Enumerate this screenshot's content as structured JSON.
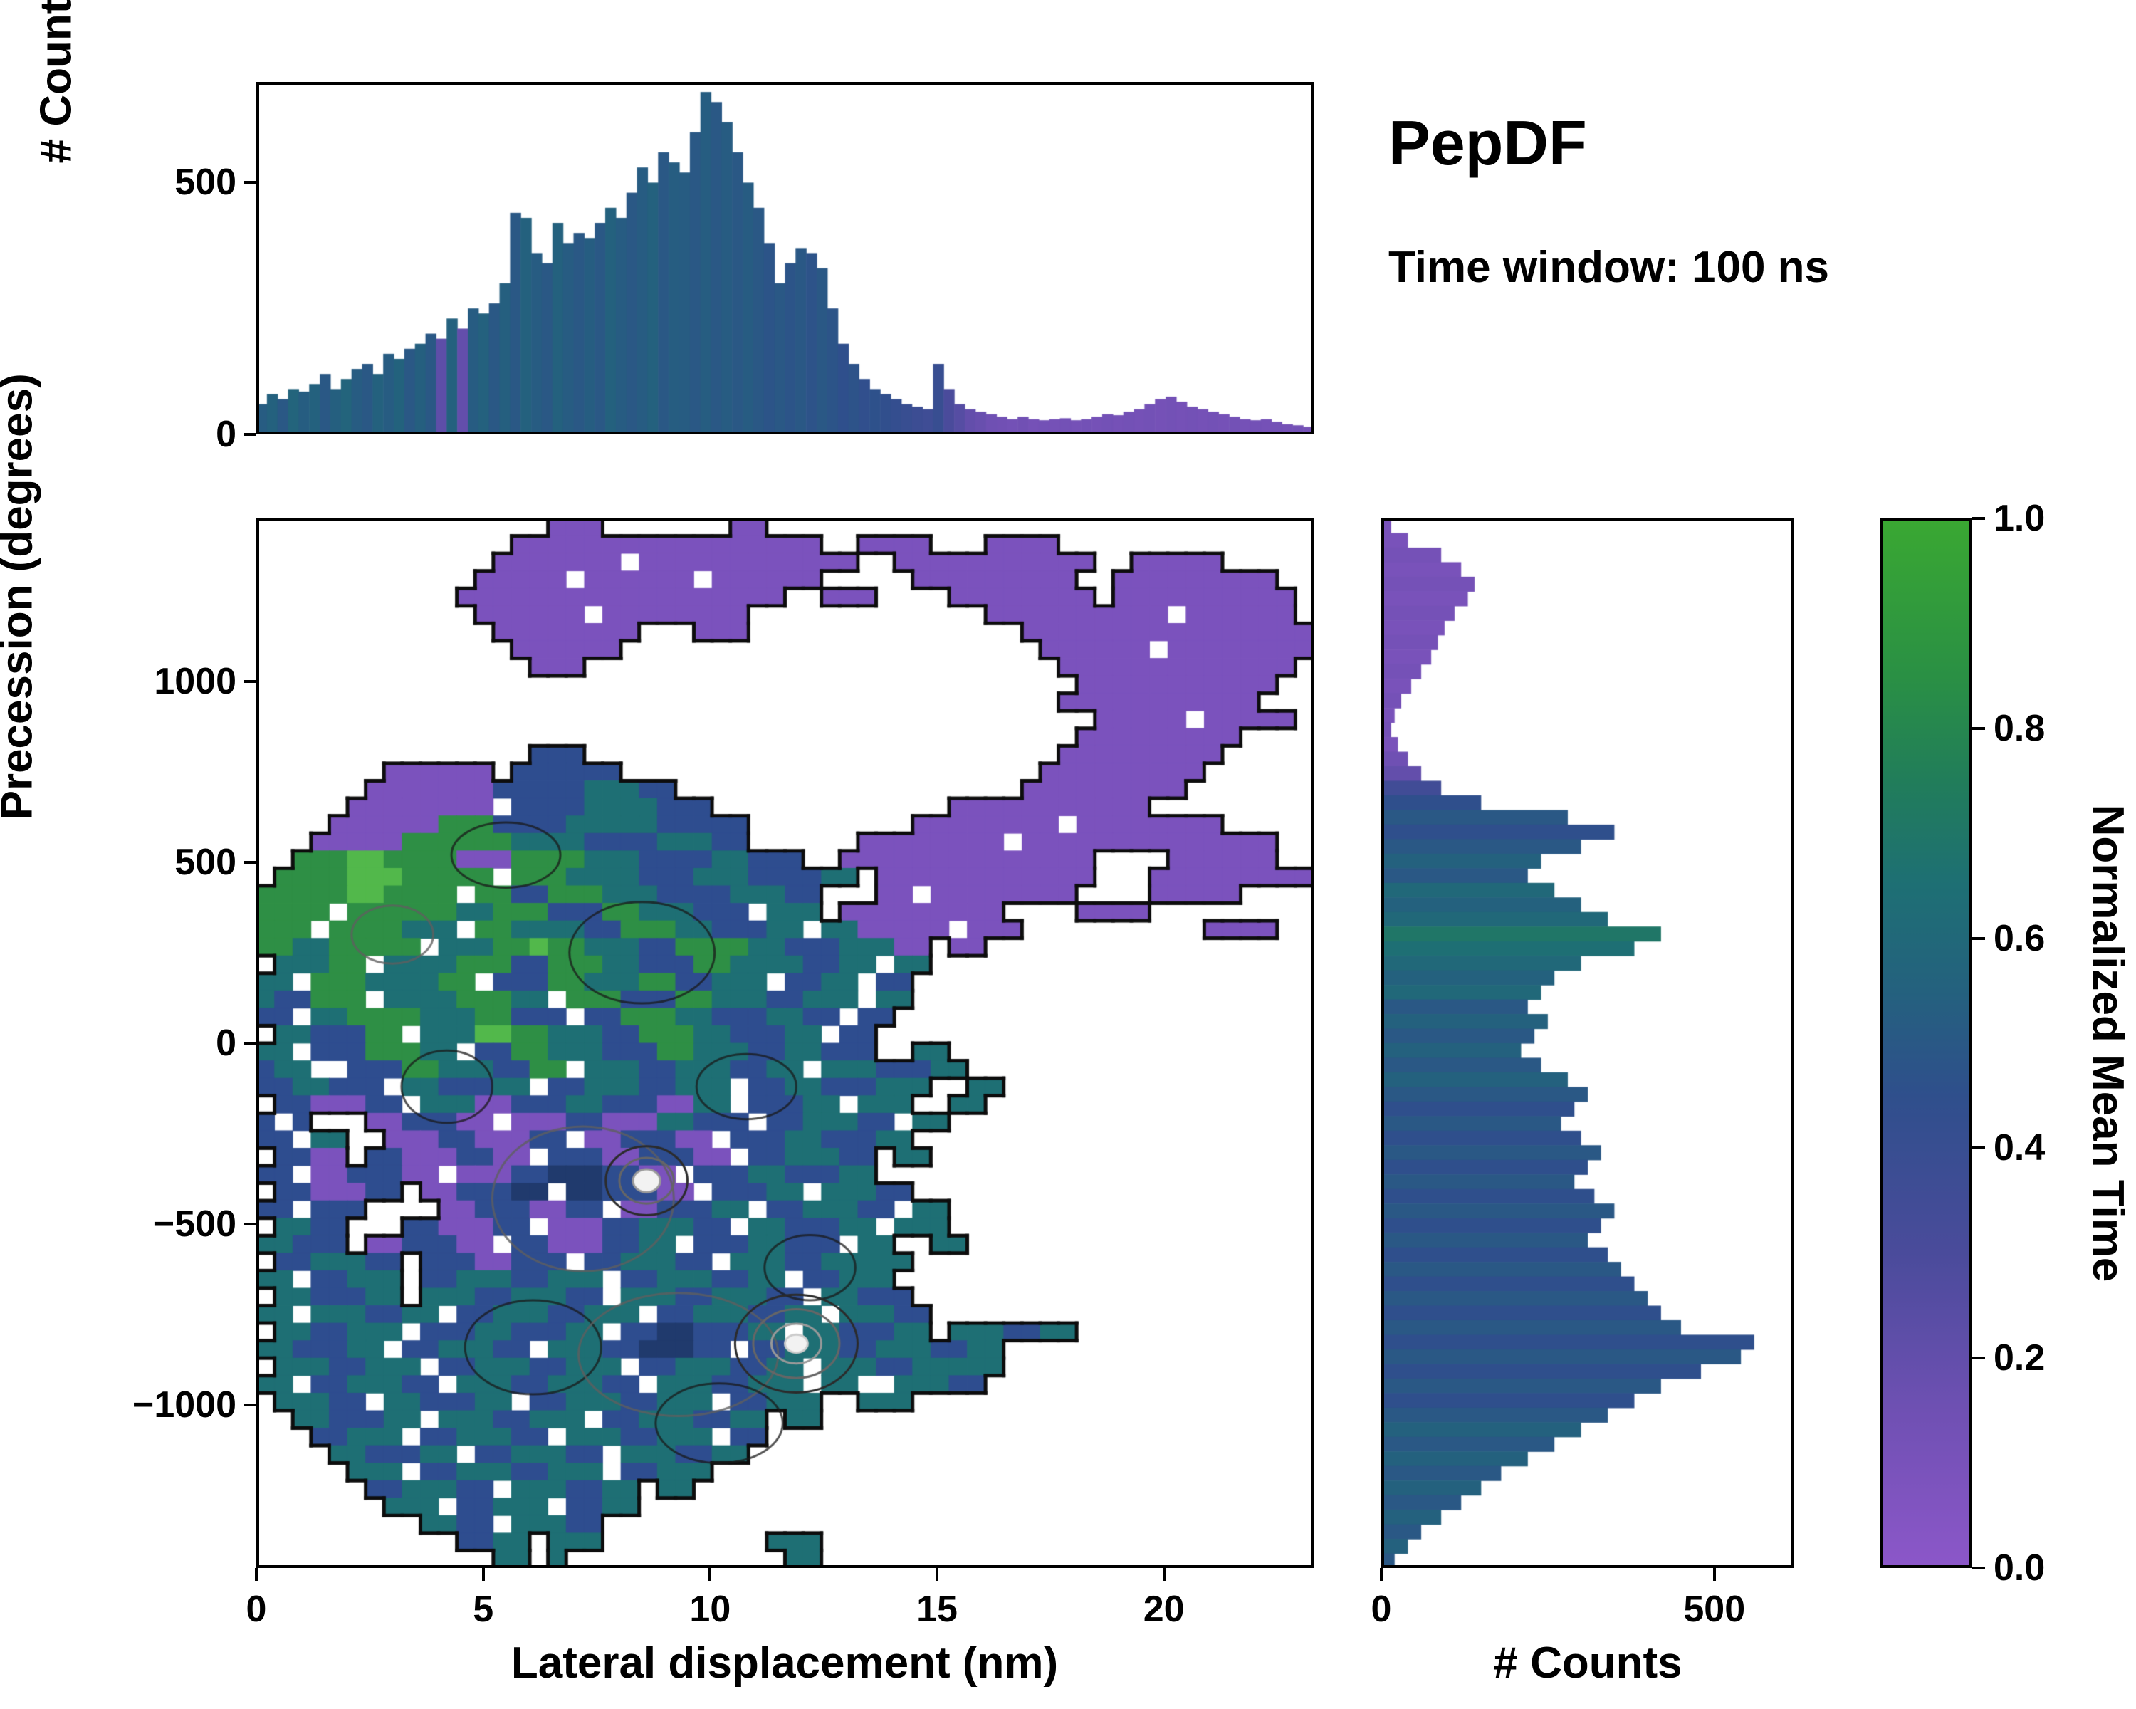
{
  "title": {
    "heading": "PepDF",
    "subtitle": "Time window: 100 ns"
  },
  "colormap": {
    "label": "Normalized Mean Time",
    "stops": [
      [
        0,
        "#8c57c9"
      ],
      [
        0.15,
        "#6f50b3"
      ],
      [
        0.3,
        "#4a4b9b"
      ],
      [
        0.45,
        "#2f4f8c"
      ],
      [
        0.55,
        "#24617e"
      ],
      [
        0.65,
        "#1e6f74"
      ],
      [
        0.75,
        "#217d5a"
      ],
      [
        0.85,
        "#2a9044"
      ],
      [
        1,
        "#3aa832"
      ]
    ],
    "range": [
      0,
      1
    ],
    "ticks": [
      {
        "v": 0,
        "label": "0.0"
      },
      {
        "v": 0.2,
        "label": "0.2"
      },
      {
        "v": 0.4,
        "label": "0.4"
      },
      {
        "v": 0.6,
        "label": "0.6"
      },
      {
        "v": 0.8,
        "label": "0.8"
      },
      {
        "v": 1,
        "label": "1.0"
      }
    ]
  },
  "chart_data": [
    {
      "id": "top_histogram",
      "type": "bar",
      "orientation": "vertical",
      "ylabel": "# Counts",
      "x_range": [
        0,
        23.3
      ],
      "y_range": [
        0,
        700
      ],
      "y_ticks": [
        {
          "v": 0,
          "label": "0"
        },
        {
          "v": 500,
          "label": "500"
        }
      ],
      "n_bins": 100,
      "values": [
        60,
        80,
        70,
        90,
        85,
        100,
        120,
        90,
        110,
        130,
        140,
        120,
        160,
        150,
        170,
        180,
        200,
        190,
        230,
        210,
        250,
        240,
        260,
        300,
        440,
        430,
        360,
        340,
        420,
        380,
        400,
        390,
        420,
        450,
        430,
        480,
        530,
        500,
        560,
        540,
        520,
        600,
        680,
        660,
        620,
        560,
        500,
        450,
        380,
        300,
        340,
        370,
        360,
        330,
        250,
        180,
        140,
        110,
        90,
        80,
        70,
        60,
        55,
        50,
        140,
        90,
        60,
        50,
        45,
        40,
        35,
        30,
        35,
        30,
        28,
        30,
        32,
        28,
        30,
        35,
        40,
        38,
        45,
        50,
        60,
        70,
        75,
        65,
        55,
        50,
        45,
        40,
        35,
        30,
        28,
        30,
        25,
        20,
        18,
        15
      ],
      "color_t": [
        0.52,
        0.55,
        0.5,
        0.57,
        0.53,
        0.55,
        0.5,
        0.54,
        0.57,
        0.52,
        0.5,
        0.55,
        0.52,
        0.56,
        0.5,
        0.54,
        0.5,
        0.22,
        0.55,
        0.2,
        0.52,
        0.55,
        0.5,
        0.54,
        0.5,
        0.55,
        0.52,
        0.5,
        0.55,
        0.52,
        0.5,
        0.53,
        0.5,
        0.55,
        0.52,
        0.5,
        0.52,
        0.55,
        0.5,
        0.53,
        0.52,
        0.5,
        0.53,
        0.5,
        0.52,
        0.5,
        0.52,
        0.5,
        0.48,
        0.5,
        0.48,
        0.5,
        0.47,
        0.5,
        0.48,
        0.45,
        0.47,
        0.44,
        0.46,
        0.44,
        0.42,
        0.4,
        0.38,
        0.36,
        0.4,
        0.3,
        0.25,
        0.2,
        0.18,
        0.15,
        0.14,
        0.13,
        0.14,
        0.12,
        0.13,
        0.12,
        0.13,
        0.12,
        0.13,
        0.12,
        0.13,
        0.12,
        0.13,
        0.12,
        0.13,
        0.12,
        0.13,
        0.12,
        0.13,
        0.12,
        0.13,
        0.12,
        0.13,
        0.12,
        0.13,
        0.12,
        0.13,
        0.12,
        0.13,
        0.12
      ]
    },
    {
      "id": "joint_heatmap",
      "type": "heatmap",
      "xlabel": "Lateral displacement (nm)",
      "ylabel": "Precession (degrees)",
      "color_label": "Normalized Mean Time",
      "x_range": [
        0,
        23.3
      ],
      "y_range": [
        -1450,
        1450
      ],
      "x_ticks": [
        {
          "v": 0,
          "label": "0"
        },
        {
          "v": 5,
          "label": "5"
        },
        {
          "v": 10,
          "label": "10"
        },
        {
          "v": 15,
          "label": "15"
        },
        {
          "v": 20,
          "label": "20"
        }
      ],
      "y_ticks": [
        {
          "v": 1000,
          "label": "1000"
        },
        {
          "v": 500,
          "label": "500"
        },
        {
          "v": 0,
          "label": "0"
        },
        {
          "v": -500,
          "label": "−500"
        },
        {
          "v": -1000,
          "label": "−1000"
        }
      ],
      "grid_cols": 58,
      "grid_rows": 60,
      "palette": {
        "P": "#7b52bd",
        "B": "#2e4d8f",
        "N": "#203a6d",
        "T": "#1e6f74",
        "G": "#2e8f45",
        "L": "#52b84b"
      },
      "rows_rle": [
        "16.,3P,7.,2P,30.",
        "14.,17P,2.,4P,3.,4P,14.",
        "13.,7P,1.,12P,2.,11P,2.,5P,5.",
        "12.,5P,1.,6P,1.,6P,5.,9P,2.,9P,2.",
        "11.,18P,2.,3P,4.,8P,1.,10P,1.",
        "12.,6P,1.,8P,13.,10P,1.,6P,1.",
        "13.,8P,3.,3P,15.,16P",
        "14.,6P,23.,6P,1.,8P",
        "15.,3P,26.,13P,1.",
        "45.,11P,2.",
        "44.,11P,3.",
        "46.,5P,1.,5P,1.",
        "45.,9P,4.",
        "15.,3B,26.,9P,5.",
        "7.,6P,1.,6B,23.,9P,6.",
        "6.,7P,5B,3T,2B,19.,9P,7.",
        "5.,8P,1.,4B,4T,3B,13.,11P,9.",
        "4.,6P,3G,4B,5T,5B,9.,8P,1.,8P,5.",
        "3.,5P,6G,4T,4B,3T,2B,6.,8P,1.,14P,2.",
        "2.,3G,2L,4G,3P,4G,3T,4B,2T,3B,2.,14P,4.,6P,2.",
        "1.,4G,3L,5G,1.,3G,4T,3B,3T,4B,2T,1.,12P,3.,9P",
        "5G,2L,4G,1.,2G,2B,3G,3T,4B,3T,2B,3.,2P,1.,8P,4.,5P,4.",
        "4G,1.,6G,2T,3G,3B,2G,3T,3B,1.,3T,1.,9P,4.,4P,9.",
        "3G,1.,4G,3T,1.,2G,4T,2B,3G,2T,3B,2T,1.,2T,5P,1.,3P,10.,4P,2.",
        "2G,2T,5G,1.,3T,2G,1L,2G,3T,2B,4G,2T,3B,3T,2P,1.,2P,18.",
        "1.,3T,2G,1.,4T,3G,2B,3G,2T,3B,2G,4T,2B,2T,1.,2T,21.",
        "2T,1.,3G,4T,2G,1.,3B,2G,3T,2G,2B,3T,1.,2B,2T,1.,2B,22.",
        "1T,2B,3G,1.,4T,3G,2T,1.,3G,3B,2G,3T,2B,3T,1.,2T,22.",
        "2B,1.,2T,4G,3T,2G,3B,1.,2B,3G,2T,3B,2T,2B,1.,2B,23.",
        "1.,2T,3B,2G,1.,3T,2L,2G,3T,2B,3G,2T,3B,2T,1.,2B,24.",
        "2T,1.,3B,3G,2T,1.,2B,2G,3T,3B,2G,3T,2B,2T,3B,2.,2T,20.",
        "1B,2T,2.,3B,2G,3T,2B,2G,1.,3T,2B,3T,2B,2T,1.,3T,3B,2T,19.",
        "2B,2T,3B,1.,2T,3B,2T,1.,2B,3T,2B,3T,1.,2B,2T,3B,3T,2.,2T,17.",
        "1.,2B,3P,2B,1.,3T,2P,3B,2T,3B,2P,2T,1.,3B,2T,1.,3T,2.,2T,18.",
        "1B,1.,1B,3.,2P,3B,2P,1.,3P,2B,3P,2T,3B,1.,2B,3T,2B,1.,2T,20.",
        "2B,1.,2T,2.,3P,2B,3P,2B,1.,2P,3B,2P,1.,3B,2T,3B,2T,22.",
        "1.,2B,2P,1.,2B,3P,2B,2P,1.,3B,2P,3B,2P,1.,2B,3T,2B,1.,2T,21.",
        "2B,1.,2P,3B,2P,1.,3P,2B,3N,2B,2P,1.,3B,2T,3B,2T,24.",
        "1.,2B,3P,2B,1.,2P,3B,2N,1.,2N,3B,2P,1.,3B,2T,1.,3T,2B,22.",
        "2B,1.,3B,4.,2P,3B,2P,2B,1.,2P,3B,2T,1.,2B,3T,2B,1.,2T,20.",
        "1.,2T,2B,3.,2B,3P,2B,1.,3P,2B,3T,2B,1.,2T,3B,2T,1.,3T,20.",
        "2T,3B,1.,2P,3B,2P,1.,2B,3P,2B,2T,1.,3B,2T,3B,1.,2T,2.,2T,19.",
        "1.,2B,3T,2B,1.,3B,2P,3B,1.,2B,3T,2B,1.,3T,2B,3T,2T,22.",
        "2T,1.,2B,3T,1.,2B,3T,2B,3T,1.,2B,3T,2B,2T,1.,2B,3T,23.",
        "1.,2T,3B,2T,1.,3T,2B,3T,2B,1.,3T,2B,3T,2B,1.,2T,3B,22.",
        "2T,1.,3T,2B,2T,1.,2B,3T,2B,3T,1.,2B,3T,2B,2T,1.,3T,2B,21.",
        "1.,2T,2B,3T,1.,3B,2T,3B,2T,1.,2B,2N,3B,2T,1.,2T,3B,2T,1.,3T,2B,2T,13.",
        "2T,3B,2T,1.,2B,3T,2B,1.,3T,2B,3N,2B,1.,2B,3T,2B,3T,2B,2T,17.",
        "1.,3T,2B,3T,1.,2B,3T,2B,3T,1.,2B,3T,2B,2T,1.,3T,2B,3T,2T,17.",
        "2T,1.,2B,3T,2B,1.,3T,2B,3T,2B,1.,3T,2B,3T,1.,2T,2.,3T,2B,18.",
        "1.,3T,2B,1.,2T,3B,2T,1.,2B,3T,2B,3T,1.,2B,3T,2.,3T,22.",
        "2.,2T,3B,2T,1.,3T,2B,3T,1.,2B,3T,2B,2T,1.,2T,27.",
        "3.,2B,3T,1.,2B,3T,2B,1.,3T,2B,3T,1.,2B,30.",
        "4.,2T,3B,2T,1.,2B,3T,2B,1.,3T,2B,2T,31.",
        "5.,3T,1.,2B,3T,2B,3T,1.,2B,3T,33.",
        "6.,2B,3T,2B,1.,3T,2B,2T,1.,2T,34.",
        "7.,3T,1.,2B,3T,1.,2B,2T,37.",
        "9.,2T,2B,1.,3T,2B,39.",
        "11.,2B,2T,1.,3T,9.,3T,27.",
        "13.,2T,1.,1T,12.,2T,27."
      ],
      "inner_contours": [
        {
          "cx": 5.5,
          "cy": 520,
          "rx": 1.2,
          "ry": 90
        },
        {
          "cx": 8.5,
          "cy": 250,
          "rx": 1.6,
          "ry": 140
        },
        {
          "cx": 3.0,
          "cy": 300,
          "rx": 0.9,
          "ry": 80
        },
        {
          "cx": 4.2,
          "cy": -120,
          "rx": 1.0,
          "ry": 100
        },
        {
          "cx": 10.8,
          "cy": -120,
          "rx": 1.1,
          "ry": 90
        },
        {
          "cx": 7.2,
          "cy": -430,
          "rx": 2.0,
          "ry": 200
        },
        {
          "cx": 12.2,
          "cy": -620,
          "rx": 1.0,
          "ry": 90
        },
        {
          "cx": 6.1,
          "cy": -840,
          "rx": 1.5,
          "ry": 130
        },
        {
          "cx": 9.3,
          "cy": -860,
          "rx": 2.2,
          "ry": 170
        },
        {
          "cx": 10.2,
          "cy": -1050,
          "rx": 1.4,
          "ry": 110
        }
      ],
      "peaks": [
        {
          "x": 8.6,
          "y": -380,
          "rings": [
            [
              0.9,
              95
            ],
            [
              0.6,
              63
            ],
            [
              0.3,
              32
            ]
          ]
        },
        {
          "x": 11.9,
          "y": -830,
          "rings": [
            [
              1.35,
              135
            ],
            [
              0.95,
              95
            ],
            [
              0.55,
              55
            ],
            [
              0.25,
              25
            ]
          ]
        }
      ],
      "ring_colors": [
        "#2b2b2b",
        "#666666",
        "#999999",
        "#cccccc"
      ],
      "outline_color": "#0d0d0d"
    },
    {
      "id": "right_histogram",
      "type": "bar",
      "orientation": "horizontal",
      "xlabel": "# Counts",
      "x_range": [
        0,
        620
      ],
      "y_range": [
        -1450,
        1450
      ],
      "x_ticks": [
        {
          "v": 0,
          "label": "0"
        },
        {
          "v": 500,
          "label": "500"
        }
      ],
      "n_bins": 72,
      "values": [
        15,
        40,
        90,
        120,
        140,
        130,
        110,
        95,
        85,
        75,
        60,
        45,
        30,
        20,
        15,
        25,
        40,
        60,
        90,
        150,
        280,
        350,
        300,
        240,
        220,
        260,
        300,
        340,
        420,
        380,
        300,
        260,
        240,
        220,
        250,
        230,
        210,
        240,
        280,
        310,
        290,
        270,
        300,
        330,
        310,
        290,
        320,
        350,
        330,
        310,
        340,
        360,
        380,
        400,
        420,
        450,
        560,
        540,
        480,
        420,
        380,
        340,
        300,
        260,
        220,
        180,
        150,
        120,
        90,
        60,
        40,
        20
      ],
      "color_t": [
        0.1,
        0.1,
        0.12,
        0.1,
        0.12,
        0.1,
        0.12,
        0.1,
        0.12,
        0.1,
        0.12,
        0.1,
        0.12,
        0.1,
        0.12,
        0.1,
        0.15,
        0.2,
        0.35,
        0.45,
        0.5,
        0.45,
        0.5,
        0.55,
        0.5,
        0.6,
        0.55,
        0.6,
        0.7,
        0.65,
        0.6,
        0.55,
        0.6,
        0.5,
        0.55,
        0.5,
        0.55,
        0.5,
        0.55,
        0.5,
        0.45,
        0.5,
        0.45,
        0.5,
        0.45,
        0.5,
        0.45,
        0.5,
        0.45,
        0.5,
        0.45,
        0.5,
        0.45,
        0.5,
        0.45,
        0.5,
        0.45,
        0.5,
        0.45,
        0.5,
        0.45,
        0.5,
        0.55,
        0.5,
        0.55,
        0.5,
        0.55,
        0.5,
        0.55,
        0.5,
        0.55,
        0.5
      ]
    }
  ]
}
